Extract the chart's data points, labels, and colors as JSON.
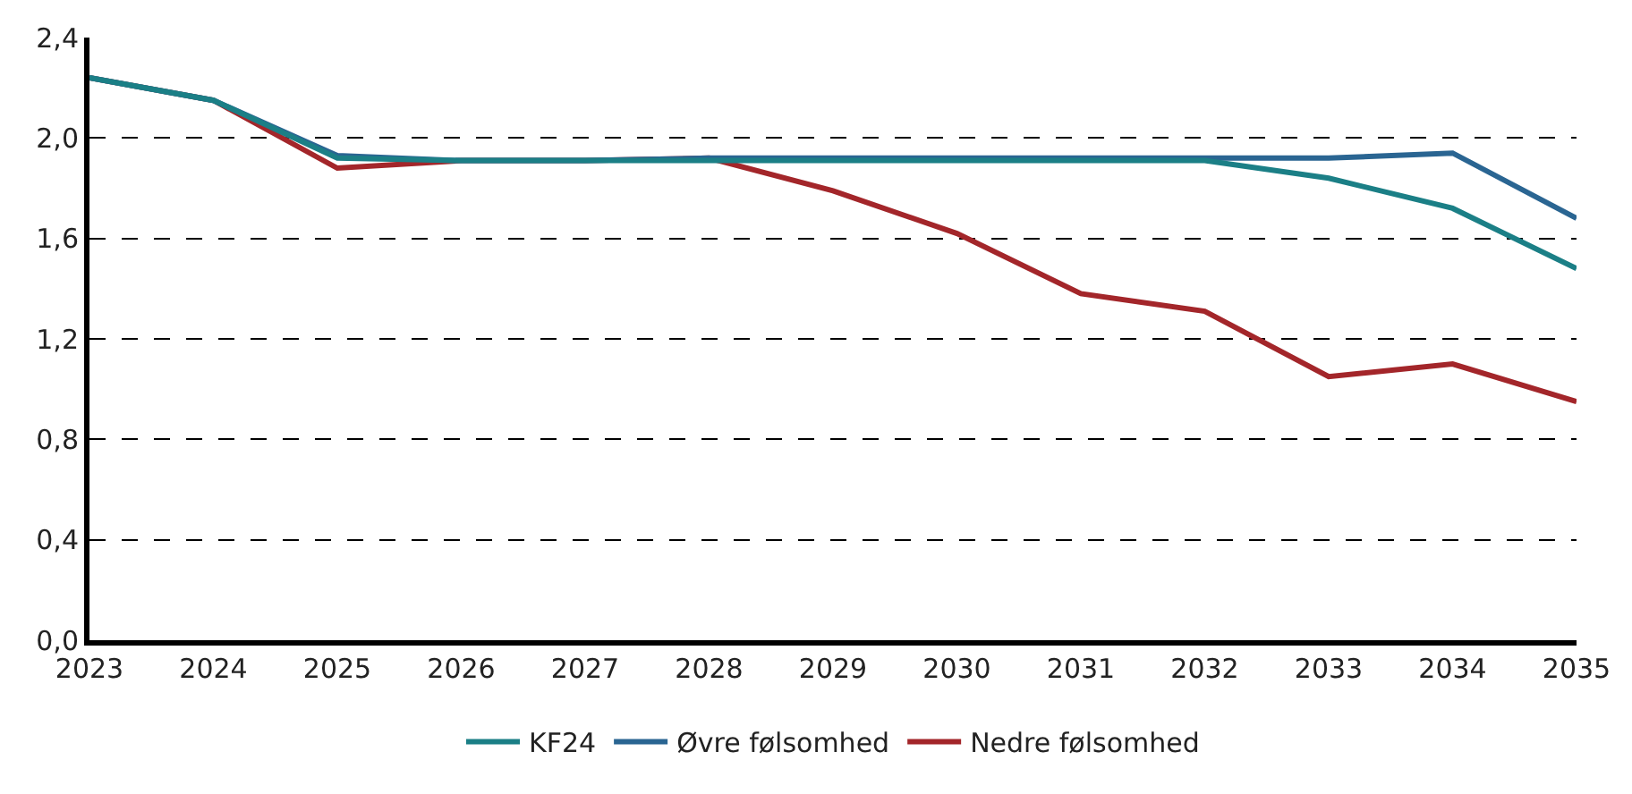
{
  "chart_data": {
    "type": "line",
    "x": [
      2023,
      2024,
      2025,
      2026,
      2027,
      2028,
      2029,
      2030,
      2031,
      2032,
      2033,
      2034,
      2035
    ],
    "series": [
      {
        "name": "KF24",
        "color": "#1b7f86",
        "values": [
          2.24,
          2.15,
          1.92,
          1.91,
          1.91,
          1.91,
          1.91,
          1.91,
          1.91,
          1.91,
          1.84,
          1.72,
          1.48
        ]
      },
      {
        "name": "Øvre følsomhed",
        "color": "#2a6592",
        "values": [
          2.24,
          2.15,
          1.93,
          1.91,
          1.91,
          1.92,
          1.92,
          1.92,
          1.92,
          1.92,
          1.92,
          1.94,
          1.68
        ]
      },
      {
        "name": "Nedre følsomhed",
        "color": "#a3262a",
        "values": [
          2.24,
          2.15,
          1.88,
          1.91,
          1.91,
          1.92,
          1.79,
          1.62,
          1.38,
          1.31,
          1.05,
          1.1,
          0.95
        ]
      }
    ],
    "xlim": [
      2023,
      2035
    ],
    "xticks": [
      2023,
      2024,
      2025,
      2026,
      2027,
      2028,
      2029,
      2030,
      2031,
      2032,
      2033,
      2034,
      2035
    ],
    "ylim": [
      0,
      2.4
    ],
    "yticks": [
      {
        "value": 0,
        "label": "0,0"
      },
      {
        "value": 0.4,
        "label": "0,4"
      },
      {
        "value": 0.8,
        "label": "0,8"
      },
      {
        "value": 1.2,
        "label": "1,2"
      },
      {
        "value": 1.6,
        "label": "1,6"
      },
      {
        "value": 2.0,
        "label": "2,0"
      },
      {
        "value": 2.4,
        "label": "2,4"
      }
    ],
    "grid": "y",
    "legend": "bottom",
    "marker": "none",
    "line_style": "solid"
  }
}
